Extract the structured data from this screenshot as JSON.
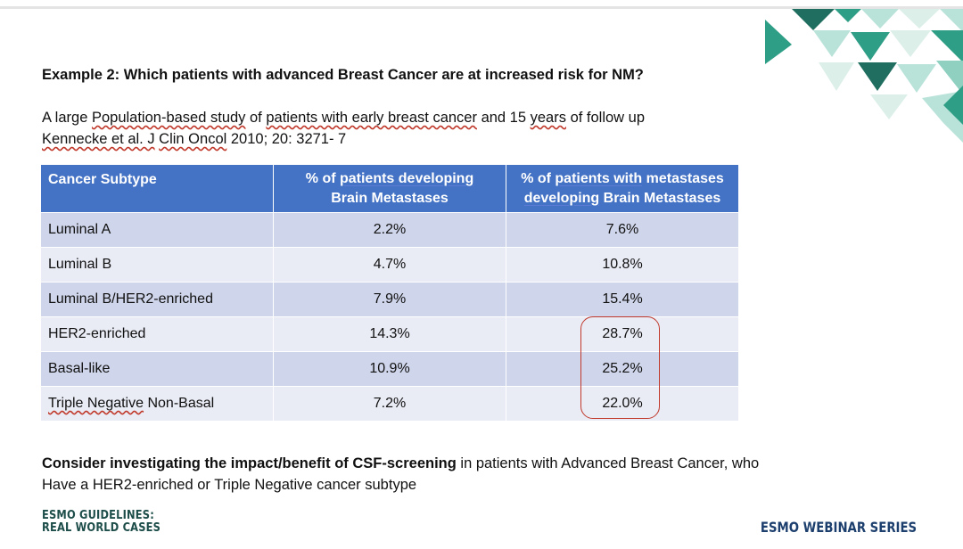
{
  "title": "Example 2: Which patients with advanced Breast Cancer are at increased risk for NM?",
  "intro": {
    "line1": {
      "pre": "A large ",
      "u1": "Population-based study",
      "mid1": " of ",
      "u2": "patients with early breast cancer",
      "mid2": " and 15 ",
      "u3": "years",
      "post": " of follow up"
    },
    "line2": {
      "u1": "Kennecke et al. J",
      "mid1": " ",
      "u2": "Clin Oncol",
      "post": " 2010; 20: 3271- 7"
    }
  },
  "table": {
    "header": {
      "col1": "Cancer Subtype",
      "col2_pre": "% of ",
      "col2_u": "patients developing",
      "col2_line2": "Brain Metastases",
      "col3_pre": "% of ",
      "col3_u": "patients with",
      "col3_post": " metastases",
      "col3_line2_u": "developing",
      "col3_line2_post": " Brain Metastases"
    },
    "rows": [
      {
        "subtype": "Luminal A",
        "brain": "2.2%",
        "meta": "7.6%"
      },
      {
        "subtype": "Luminal B",
        "brain": "4.7%",
        "meta": "10.8%"
      },
      {
        "subtype": "Luminal B/HER2-enriched",
        "brain": "7.9%",
        "meta": "15.4%"
      },
      {
        "subtype": "HER2-enriched",
        "brain": "14.3%",
        "meta": "28.7%"
      },
      {
        "subtype": "Basal-like",
        "brain": "10.9%",
        "meta": "25.2%"
      },
      {
        "subtype_u": "Triple Negative",
        "subtype_post": " Non-Basal",
        "brain": "7.2%",
        "meta": "22.0%"
      }
    ]
  },
  "conclusion": {
    "bold": "Consider investigating the impact/benefit of CSF-screening",
    "rest": " in patients with Advanced Breast Cancer, who",
    "line2": "Have a HER2-enriched or Triple Negative cancer subtype"
  },
  "footer": {
    "left_line1": "ESMO GUIDELINES:",
    "left_line2": "REAL WORLD CASES",
    "right": "ESMO WEBINAR SERIES"
  },
  "colors": {
    "header_bg": "#4472c4",
    "row_odd": "#cfd5ea",
    "row_even": "#e9ebf5",
    "highlight": "#c0392b",
    "teal_dark": "#1f6e5f",
    "teal_mid": "#2f9e86",
    "teal_light": "#b9e3d9"
  }
}
